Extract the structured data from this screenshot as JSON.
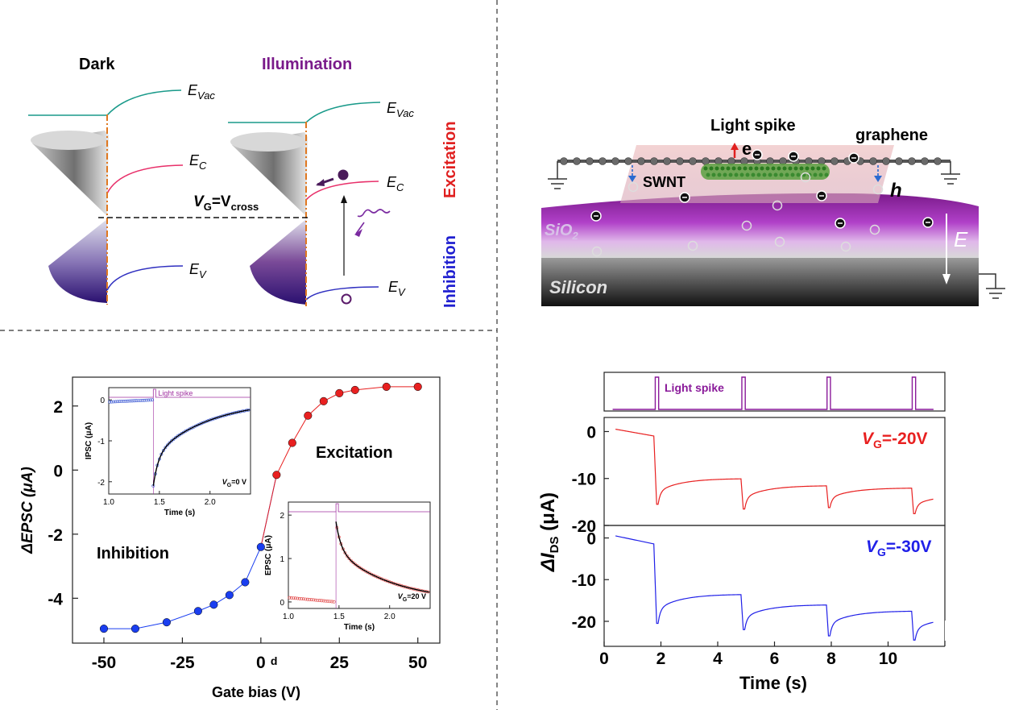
{
  "panel_a": {
    "dark_label": "Dark",
    "illum_label": "Illumination",
    "evac": "E",
    "evac_sub": "Vac",
    "ec": "E",
    "ec_sub": "C",
    "ev": "E",
    "ev_sub": "V",
    "vg_main": "V",
    "vg_sub": "G",
    "vg_eq": "=V",
    "vg_sub2": "cross",
    "excitation_label": "Excitation",
    "inhibition_label": "Inhibition",
    "colors": {
      "vac": "#1a9a8a",
      "cond": "#e8306a",
      "val": "#3030c0",
      "dash": "#e07820",
      "excite": "#e02020",
      "inhibit": "#2020d0",
      "purple": "#5a1a6a"
    }
  },
  "panel_b": {
    "light_spike": "Light spike",
    "graphene": "graphene",
    "swnt": "SWNT",
    "e_label": "e",
    "h_label": "h",
    "sio2": "SiO",
    "sio2_sub": "2",
    "silicon": "Silicon",
    "field": "E"
  },
  "chart_data": [
    {
      "type": "scatter",
      "xlabel": "Gate bias (V)",
      "ylabel": "ΔEPSC (μA)",
      "xlim": [
        -60,
        57
      ],
      "ylim": [
        -5.4,
        2.9
      ],
      "xticks": [
        -50,
        -25,
        0,
        25,
        50
      ],
      "yticks": [
        2,
        0,
        -2,
        -4
      ],
      "xtick_labels": [
        "-50",
        "-25",
        "0",
        "25",
        "50"
      ],
      "ytick_labels": [
        "2",
        "0",
        "-2",
        "-4"
      ],
      "zero_suffix": "d",
      "series": [
        {
          "x": [
            -50,
            -40,
            -30,
            -20,
            -15,
            -10,
            -5,
            0
          ],
          "y": [
            -4.95,
            -4.95,
            -4.75,
            -4.4,
            -4.2,
            -3.9,
            -3.5,
            -2.4
          ],
          "color": "#1a3ef0"
        },
        {
          "x": [
            5,
            10,
            15,
            20,
            25,
            30,
            40,
            50
          ],
          "y": [
            -0.15,
            0.85,
            1.7,
            2.15,
            2.4,
            2.5,
            2.6,
            2.6
          ],
          "color": "#e82020"
        }
      ],
      "annotations": [
        "Excitation",
        "Inhibition"
      ],
      "insets": [
        {
          "type": "scatter",
          "xlabel": "Time (s)",
          "ylabel": "IPSC (μA)",
          "xlim": [
            1.0,
            2.4
          ],
          "ylim": [
            -2.3,
            0.3
          ],
          "xticks": [
            1.0,
            1.5,
            2.0
          ],
          "yticks": [
            0,
            -1,
            -2
          ],
          "xtick_labels": [
            "1.0",
            "1.5",
            "2.0"
          ],
          "ytick_labels": [
            "0",
            "-1",
            "-2"
          ],
          "spike_label": "Light spike",
          "vg_label": "V",
          "vg_sub": "G",
          "vg_val": "=0 V",
          "spike_time": 1.44,
          "baseline": 0.0,
          "peak": -2.1,
          "recover_end": 0.0
        },
        {
          "type": "scatter",
          "xlabel": "Time (s)",
          "ylabel": "EPSC (μA)",
          "xlim": [
            1.0,
            2.4
          ],
          "ylim": [
            -0.15,
            2.3
          ],
          "xticks": [
            1.0,
            1.5,
            2.0
          ],
          "yticks": [
            0,
            1,
            2
          ],
          "xtick_labels": [
            "1.0",
            "1.5",
            "2.0"
          ],
          "ytick_labels": [
            "0",
            "1",
            "2"
          ],
          "vg_label": "V",
          "vg_sub": "G",
          "vg_val": "=20 V",
          "spike_time": 1.47,
          "baseline": 0.0,
          "peak": 1.85,
          "recover_end": 0.0
        }
      ]
    },
    {
      "type": "line",
      "xlabel": "Time (s)",
      "ylabel_main": "ΔI",
      "ylabel_sub": "DS",
      "ylabel_unit": " (μA)",
      "xlim": [
        0,
        12
      ],
      "xticks": [
        0,
        2,
        4,
        6,
        8,
        10
      ],
      "xtick_labels": [
        "0",
        "2",
        "4",
        "6",
        "8",
        "10"
      ],
      "x_partial_tick": "12",
      "spike_label": "Light spike",
      "spikes": [
        1.8,
        4.85,
        7.85,
        10.85
      ],
      "panels": [
        {
          "name_v": "V",
          "name_sub": "G",
          "name_val": "=-20V",
          "color": "#e82020",
          "ylim": [
            -20,
            3
          ],
          "yticks": [
            0,
            -10,
            -20
          ],
          "ytick_labels": [
            "0",
            "-10",
            "-20"
          ],
          "start": 0.5,
          "pre_spike": -1.0,
          "drops": [
            -15.5,
            -16.5,
            -16.2,
            -17.5
          ],
          "plateaus": [
            -10.0,
            -11.5,
            -12.0,
            -13.5
          ]
        },
        {
          "name_v": "V",
          "name_sub": "G",
          "name_val": "=-30V",
          "color": "#2020e8",
          "ylim": [
            -26,
            3
          ],
          "yticks": [
            0,
            -10,
            -20
          ],
          "ytick_labels": [
            "0",
            "-10",
            "-20"
          ],
          "start": 0.5,
          "pre_spike": -1.5,
          "drops": [
            -20.5,
            -22.0,
            -23.5,
            -24.5
          ],
          "plateaus": [
            -13.5,
            -16.0,
            -17.5,
            -19.0
          ]
        }
      ]
    }
  ]
}
